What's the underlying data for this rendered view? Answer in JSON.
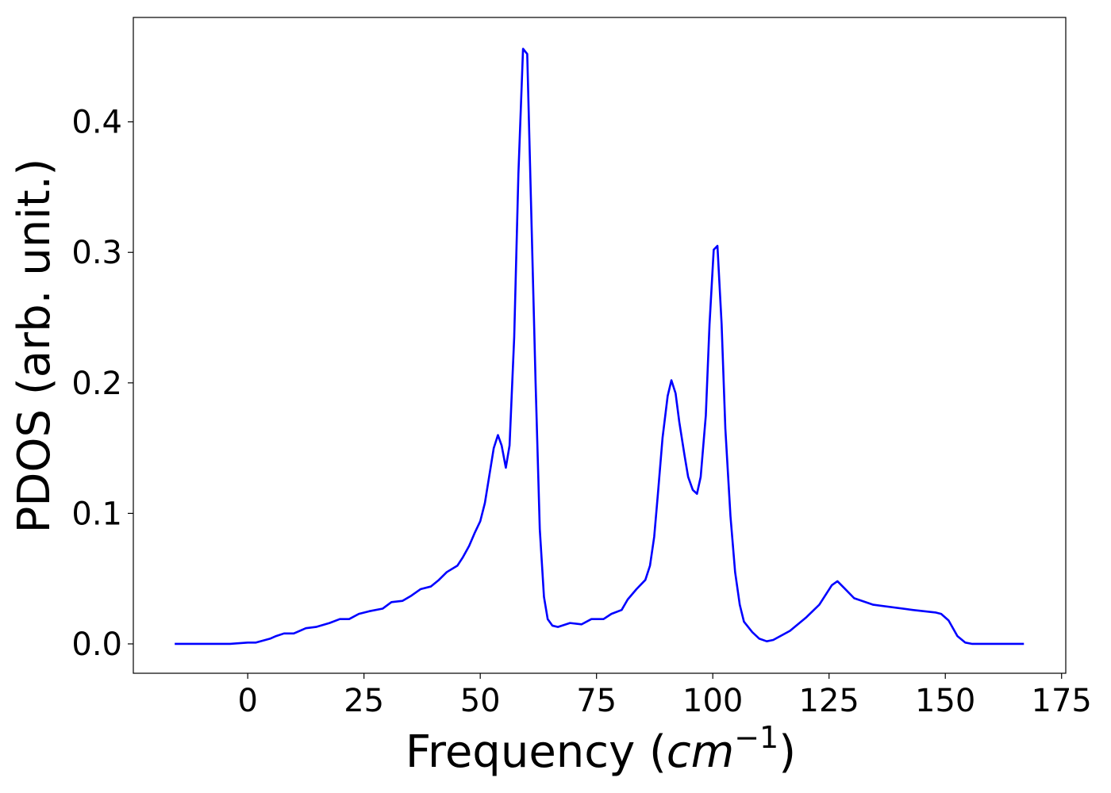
{
  "chart_data": {
    "type": "line",
    "xlabel": [
      "Frequency (",
      "cm",
      "−1",
      ")"
    ],
    "ylabel": "PDOS (arb. unit.)",
    "x": [
      -15.7,
      -3.8,
      0,
      1.7,
      4.8,
      6.1,
      7.8,
      9.9,
      12.5,
      14.7,
      17.6,
      19.8,
      21.8,
      23.9,
      26.1,
      29,
      30.9,
      33.3,
      35.2,
      37.2,
      39.4,
      41.1,
      42.8,
      45.1,
      46.2,
      47.6,
      48.8,
      50,
      51,
      52.9,
      53.8,
      54.6,
      55.5,
      56.3,
      57.3,
      58.2,
      59.2,
      60.1,
      60.9,
      61.9,
      62.8,
      63.7,
      64.5,
      65.5,
      66.7,
      69.3,
      71.8,
      73.9,
      76.5,
      78.2,
      80.4,
      81.7,
      83.6,
      85.5,
      86.5,
      87.4,
      88.2,
      89.2,
      90.3,
      91.1,
      92,
      92.8,
      93.9,
      94.7,
      95.7,
      96.6,
      97.4,
      98.5,
      99.3,
      100.2,
      101,
      101.9,
      102.7,
      103.8,
      104.8,
      105.8,
      106.7,
      108.5,
      110,
      111.6,
      113,
      116.6,
      120,
      122.9,
      125.6,
      126.8,
      128.2,
      130.4,
      134.5,
      143,
      148,
      149.1,
      150.7,
      152.6,
      154.3,
      155.8,
      166.9
    ],
    "values": [
      0,
      0,
      0.001,
      0.001,
      0.004,
      0.006,
      0.008,
      0.008,
      0.012,
      0.013,
      0.016,
      0.019,
      0.019,
      0.023,
      0.025,
      0.027,
      0.032,
      0.033,
      0.037,
      0.042,
      0.044,
      0.049,
      0.055,
      0.06,
      0.066,
      0.075,
      0.085,
      0.094,
      0.108,
      0.15,
      0.16,
      0.152,
      0.135,
      0.152,
      0.235,
      0.36,
      0.456,
      0.452,
      0.34,
      0.2,
      0.088,
      0.036,
      0.019,
      0.014,
      0.013,
      0.016,
      0.015,
      0.019,
      0.019,
      0.023,
      0.026,
      0.034,
      0.042,
      0.049,
      0.06,
      0.082,
      0.115,
      0.158,
      0.19,
      0.202,
      0.192,
      0.17,
      0.145,
      0.128,
      0.118,
      0.115,
      0.128,
      0.175,
      0.245,
      0.302,
      0.305,
      0.245,
      0.165,
      0.098,
      0.055,
      0.03,
      0.017,
      0.009,
      0.004,
      0.002,
      0.003,
      0.01,
      0.02,
      0.03,
      0.045,
      0.048,
      0.043,
      0.035,
      0.03,
      0.026,
      0.024,
      0.023,
      0.018,
      0.006,
      0.001,
      0,
      0
    ],
    "color": "#0000ff",
    "xlim": [
      -24.6,
      175.9
    ],
    "xticks": [
      0,
      25,
      50,
      75,
      100,
      125,
      150,
      175
    ],
    "ylim": [
      -0.0225,
      0.48
    ],
    "yticks": [
      {
        "value": 0,
        "label": "0.0"
      },
      0.1,
      0.2,
      0.3,
      0.4
    ]
  }
}
